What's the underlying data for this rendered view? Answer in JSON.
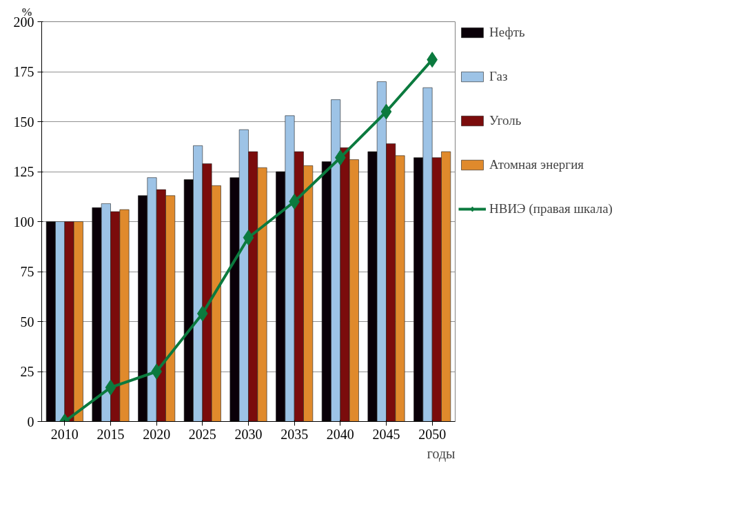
{
  "chart_data": {
    "type": "bar",
    "ylabel": "%",
    "xlabel": "годы",
    "categories": [
      "2010",
      "2015",
      "2020",
      "2025",
      "2030",
      "2035",
      "2040",
      "2045",
      "2050"
    ],
    "series": [
      {
        "name": "Нефть",
        "color": "#0a0008",
        "values": [
          100,
          107,
          113,
          121,
          122,
          125,
          130,
          135,
          132
        ]
      },
      {
        "name": "Газ",
        "color": "#9dc3e6",
        "values": [
          100,
          109,
          122,
          138,
          146,
          153,
          161,
          170,
          167
        ]
      },
      {
        "name": "Уголь",
        "color": "#7b0c0c",
        "values": [
          100,
          105,
          116,
          129,
          135,
          135,
          137,
          139,
          132
        ]
      },
      {
        "name": "Атомная энергия",
        "color": "#e08a2c",
        "values": [
          100,
          106,
          113,
          118,
          127,
          128,
          131,
          133,
          135
        ]
      },
      {
        "name": "НВИЭ (правая шкала)",
        "type": "line",
        "color": "#0b7a3e",
        "marker": "diamond",
        "values": [
          0,
          17,
          25,
          54,
          92,
          110,
          132,
          155,
          181
        ]
      }
    ],
    "ylim": [
      0,
      200
    ],
    "yticks": [
      0,
      25,
      50,
      75,
      100,
      125,
      150,
      175,
      200
    ],
    "grid": "y",
    "legend": "right"
  }
}
